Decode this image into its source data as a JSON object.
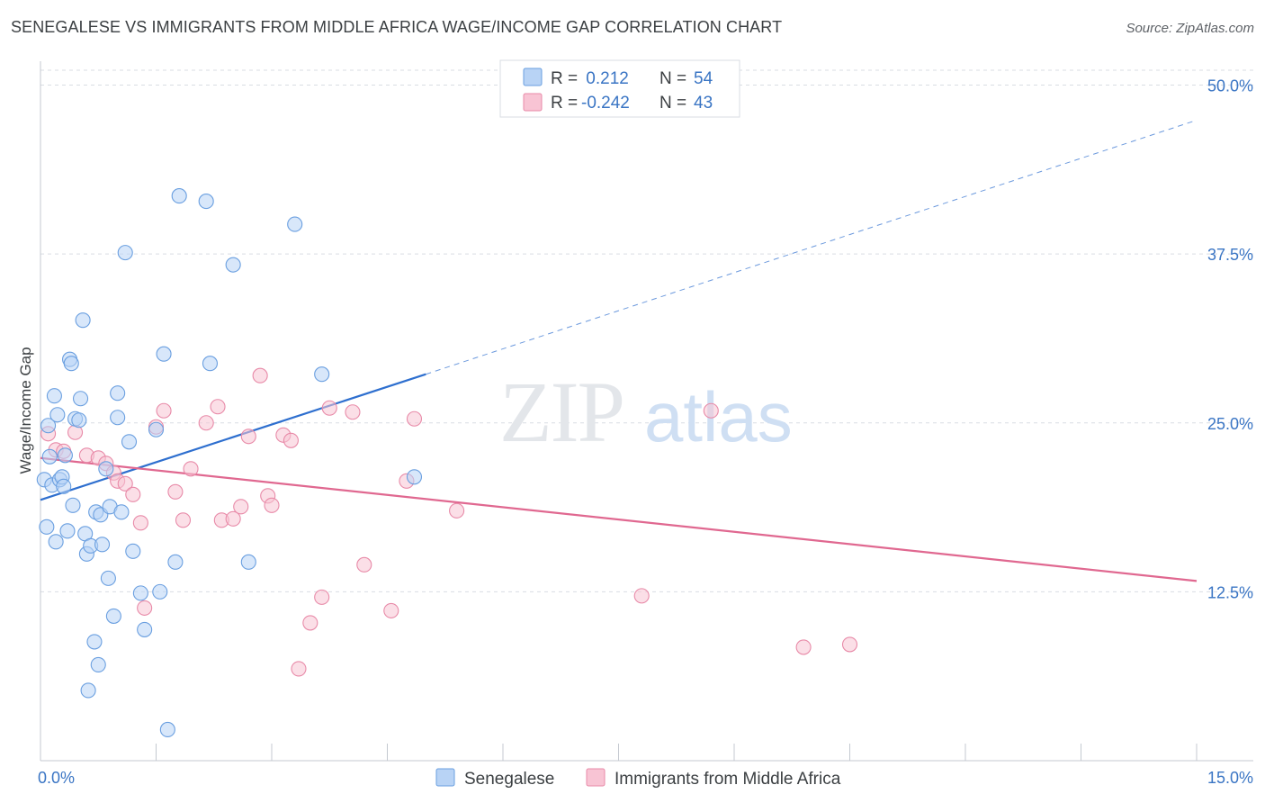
{
  "header": {
    "title": "SENEGALESE VS IMMIGRANTS FROM MIDDLE AFRICA WAGE/INCOME GAP CORRELATION CHART",
    "source": "Source: ZipAtlas.com"
  },
  "watermark": {
    "part1": "ZIP",
    "part2": "atlas"
  },
  "colors": {
    "blue_fill": "#b8d3f5",
    "blue_stroke": "#6a9fe0",
    "blue_line": "#2e6fcf",
    "pink_fill": "#f8c4d4",
    "pink_stroke": "#e88aa8",
    "pink_line": "#e06890",
    "axis_text": "#3a75c4",
    "grid": "#d9dde3"
  },
  "legend_top": {
    "rows": [
      {
        "r_label": "R =",
        "r_value": " 0.212",
        "n_label": "N =",
        "n_value": "54"
      },
      {
        "r_label": "R =",
        "r_value": "-0.242",
        "n_label": "N =",
        "n_value": "43"
      }
    ]
  },
  "legend_bottom": {
    "items": [
      "Senegalese",
      "Immigrants from Middle Africa"
    ]
  },
  "chart_data": {
    "type": "scatter",
    "title": "SENEGALESE VS IMMIGRANTS FROM MIDDLE AFRICA WAGE/INCOME GAP CORRELATION CHART",
    "xlabel": "",
    "ylabel": "Wage/Income Gap",
    "xlim": [
      0,
      15
    ],
    "ylim": [
      0,
      50
    ],
    "x_tick_labels": [
      "0.0%",
      "15.0%"
    ],
    "y_tick_labels": [
      "12.5%",
      "25.0%",
      "37.5%",
      "50.0%"
    ],
    "y_ticks": [
      12.5,
      25.0,
      37.5,
      50.0
    ],
    "grid": true,
    "legend_position": "top-center",
    "series": [
      {
        "name": "Senegalese",
        "R": 0.212,
        "N": 54,
        "trend": {
          "x": [
            0,
            5.0
          ],
          "y": [
            19.3,
            28.6
          ],
          "extended_to_x": 15,
          "extended_y": 47.4
        },
        "x": [
          0.05,
          0.08,
          0.1,
          0.12,
          0.15,
          0.18,
          0.2,
          0.22,
          0.25,
          0.28,
          0.3,
          0.32,
          0.35,
          0.38,
          0.4,
          0.42,
          0.45,
          0.5,
          0.52,
          0.55,
          0.58,
          0.6,
          0.62,
          0.65,
          0.7,
          0.72,
          0.75,
          0.78,
          0.8,
          0.85,
          0.88,
          0.9,
          0.95,
          1.0,
          1.0,
          1.05,
          1.1,
          1.15,
          1.2,
          1.3,
          1.35,
          1.5,
          1.55,
          1.6,
          1.65,
          1.75,
          1.8,
          2.15,
          2.2,
          2.5,
          2.7,
          3.3,
          3.65,
          4.85
        ],
        "y": [
          20.8,
          17.3,
          24.8,
          22.5,
          20.4,
          27.0,
          16.2,
          25.6,
          20.8,
          21.0,
          20.3,
          22.6,
          17.0,
          29.7,
          29.4,
          18.9,
          25.3,
          25.2,
          26.8,
          32.6,
          16.8,
          15.3,
          5.2,
          15.9,
          8.8,
          18.4,
          7.1,
          18.2,
          16.0,
          21.6,
          13.5,
          18.8,
          10.7,
          25.4,
          27.2,
          18.4,
          37.6,
          23.6,
          15.5,
          12.4,
          9.7,
          24.5,
          12.5,
          30.1,
          2.3,
          14.7,
          41.8,
          41.4,
          29.4,
          36.7,
          14.7,
          39.7,
          28.6,
          21.0
        ]
      },
      {
        "name": "Immigrants from Middle Africa",
        "R": -0.242,
        "N": 43,
        "trend": {
          "x": [
            0,
            15
          ],
          "y": [
            22.4,
            13.3
          ]
        },
        "x": [
          0.1,
          0.2,
          0.3,
          0.45,
          0.6,
          0.75,
          0.85,
          0.95,
          1.0,
          1.1,
          1.2,
          1.3,
          1.35,
          1.5,
          1.6,
          1.75,
          1.85,
          1.95,
          2.15,
          2.3,
          2.35,
          2.5,
          2.6,
          2.7,
          2.85,
          2.95,
          3.0,
          3.15,
          3.25,
          3.35,
          3.5,
          3.65,
          3.75,
          4.05,
          4.2,
          4.55,
          4.75,
          4.85,
          5.4,
          7.8,
          8.7,
          9.9,
          10.5
        ],
        "y": [
          24.2,
          23.0,
          22.9,
          24.3,
          22.6,
          22.4,
          22.0,
          21.3,
          20.7,
          20.5,
          19.7,
          17.6,
          11.3,
          24.7,
          25.9,
          19.9,
          17.8,
          21.6,
          25.0,
          26.2,
          17.8,
          17.9,
          18.8,
          24.0,
          28.5,
          19.6,
          18.9,
          24.1,
          23.7,
          6.8,
          10.2,
          12.1,
          26.1,
          25.8,
          14.5,
          11.1,
          20.7,
          25.3,
          18.5,
          12.2,
          25.9,
          8.4,
          8.6
        ]
      }
    ]
  }
}
